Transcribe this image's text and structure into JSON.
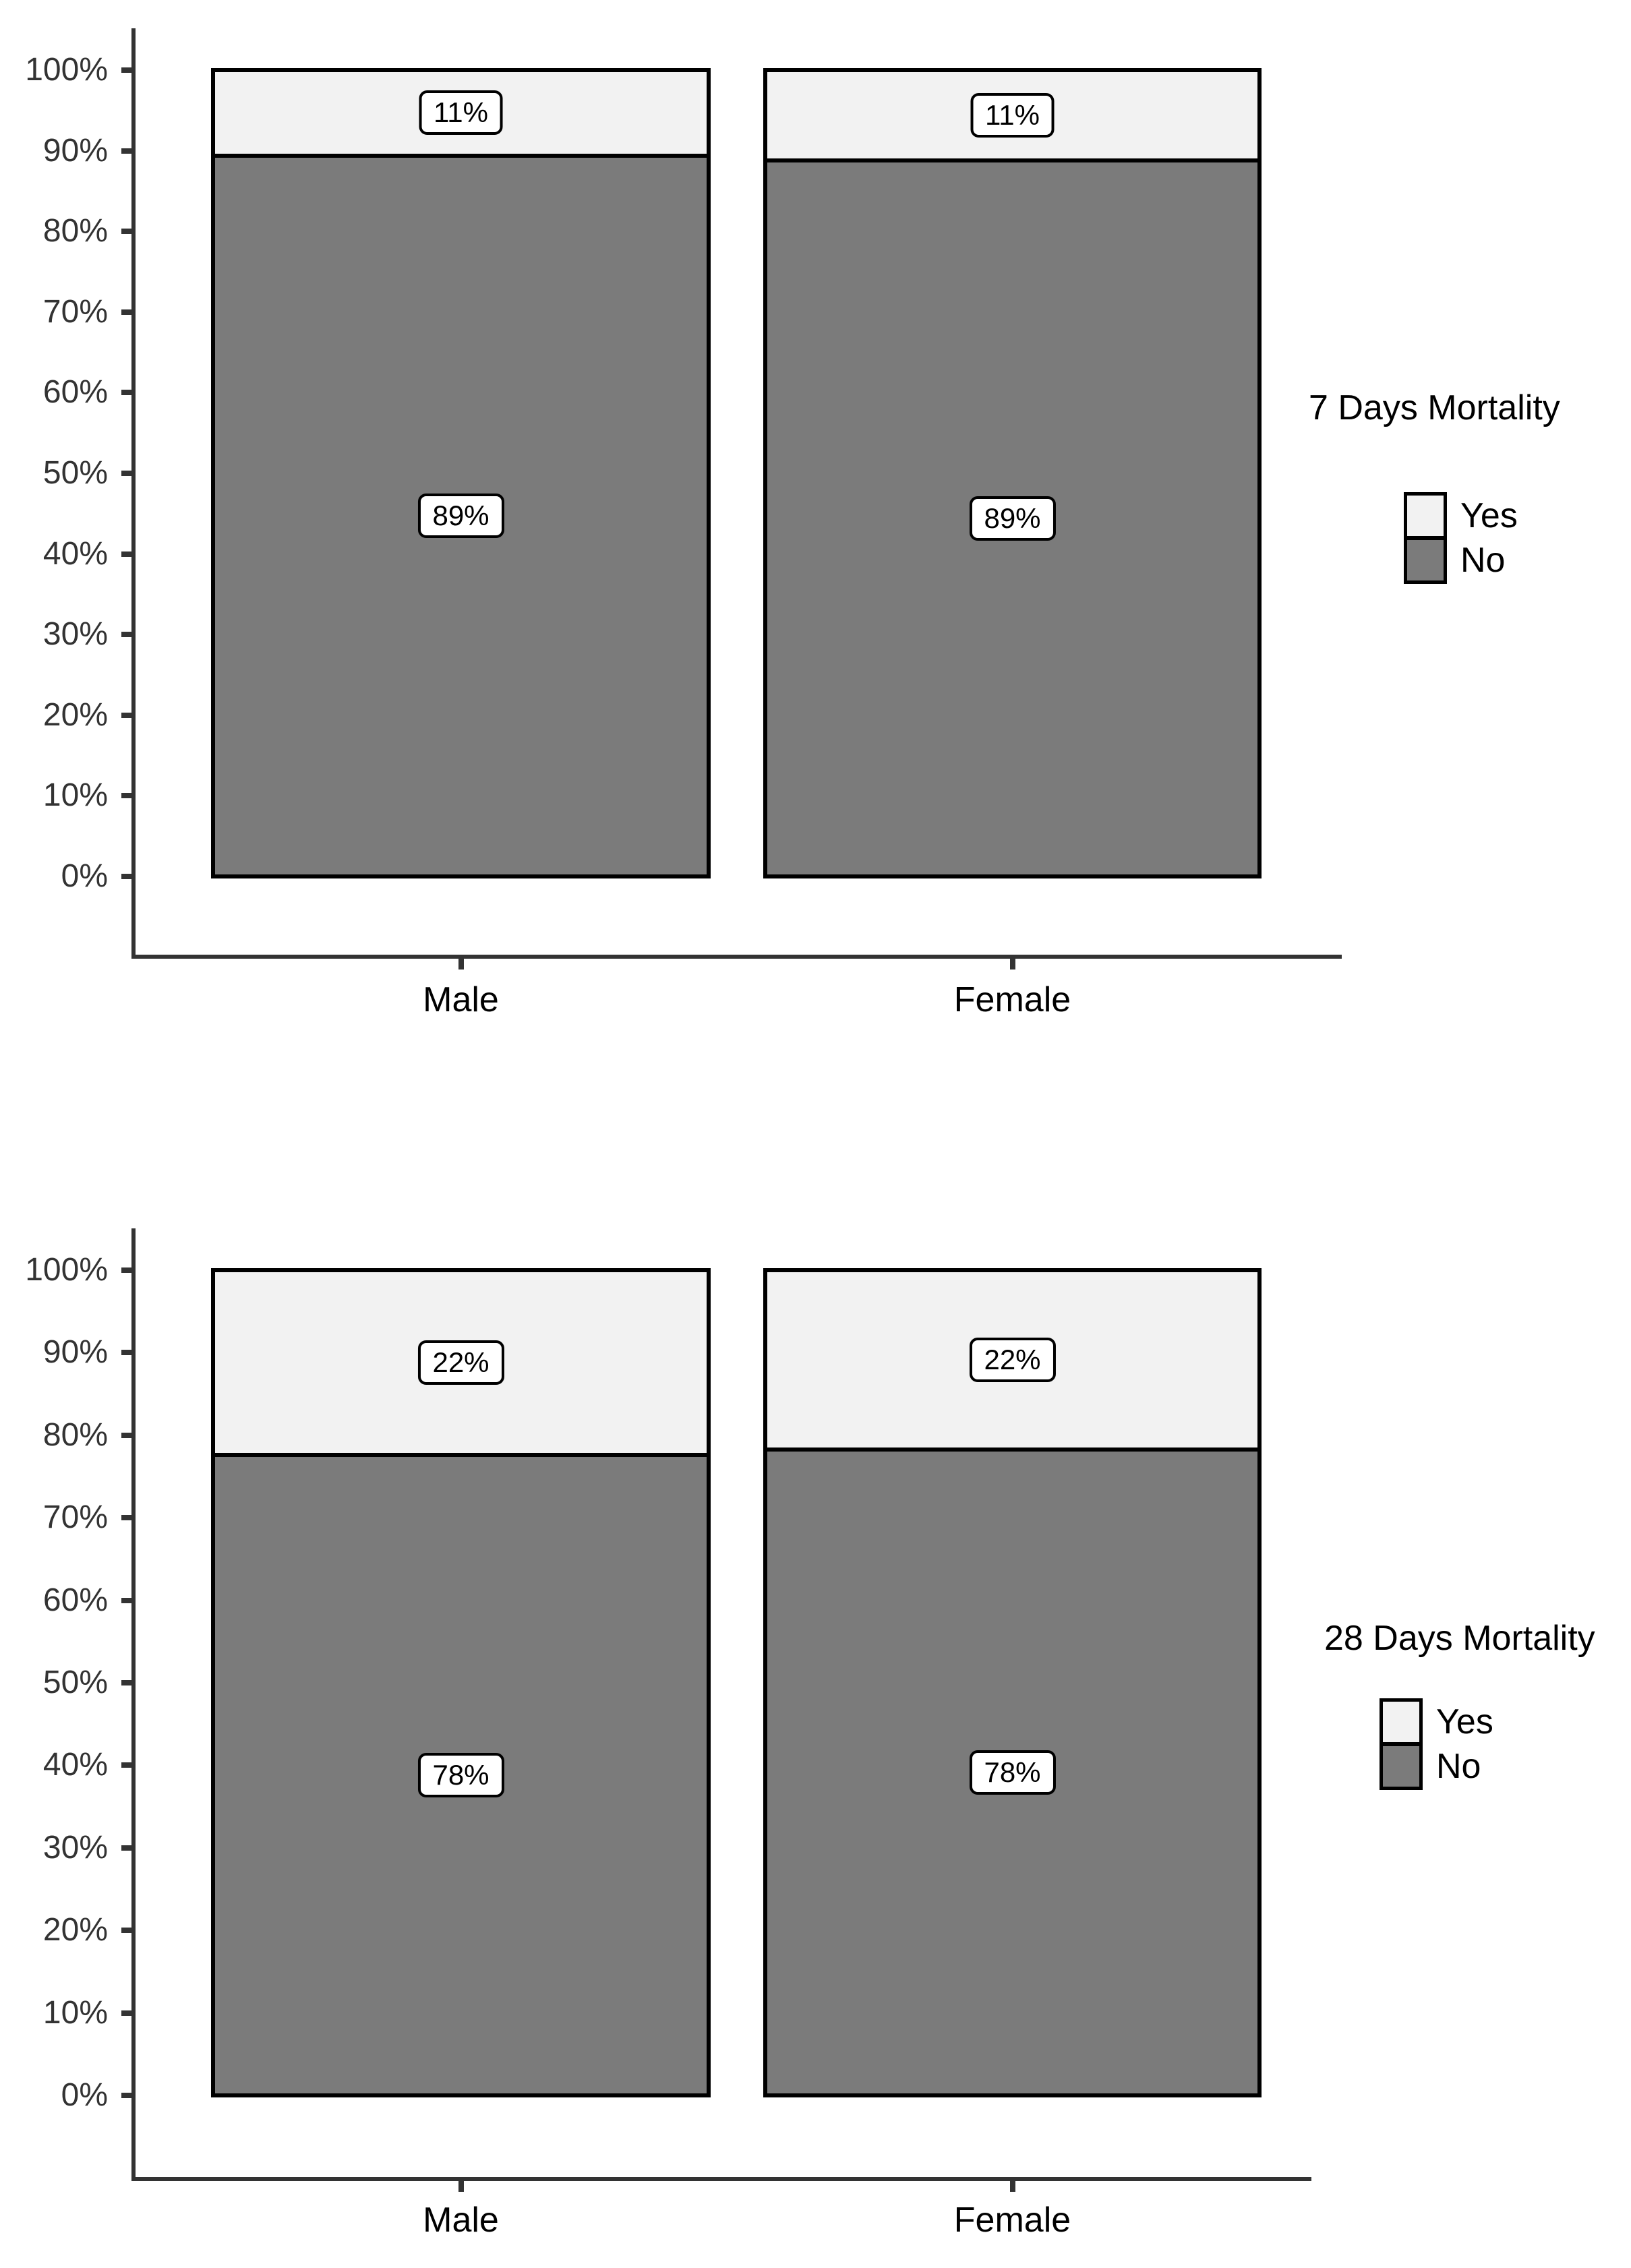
{
  "chart_data": [
    {
      "type": "bar",
      "stacked": true,
      "orientation": "vertical",
      "title": "",
      "legend_title": "7 Days Mortality",
      "legend_position": "right",
      "grid": false,
      "categories": [
        "Male",
        "Female"
      ],
      "series": [
        {
          "name": "Yes",
          "values": [
            11,
            11
          ],
          "labels": [
            "11%",
            "11%"
          ],
          "color": "#F2F2F2",
          "exact_pct": [
            10.6,
            11.2
          ]
        },
        {
          "name": "No",
          "values": [
            89,
            89
          ],
          "labels": [
            "89%",
            "89%"
          ],
          "color": "#7B7B7B",
          "exact_pct": [
            89.4,
            88.8
          ]
        }
      ],
      "ylim": [
        0,
        100
      ],
      "y_tick_labels": [
        "100%",
        "90%",
        "80%",
        "70%",
        "60%",
        "50%",
        "40%",
        "30%",
        "20%",
        "10%",
        "0%"
      ],
      "xlabel": "",
      "ylabel": ""
    },
    {
      "type": "bar",
      "stacked": true,
      "orientation": "vertical",
      "title": "",
      "legend_title": "28 Days Mortality",
      "legend_position": "right",
      "grid": false,
      "categories": [
        "Male",
        "Female"
      ],
      "series": [
        {
          "name": "Yes",
          "values": [
            22,
            22
          ],
          "labels": [
            "22%",
            "22%"
          ],
          "color": "#F2F2F2",
          "exact_pct": [
            22.4,
            21.7
          ]
        },
        {
          "name": "No",
          "values": [
            78,
            78
          ],
          "labels": [
            "78%",
            "78%"
          ],
          "color": "#7B7B7B",
          "exact_pct": [
            77.6,
            78.3
          ]
        }
      ],
      "ylim": [
        0,
        100
      ],
      "y_tick_labels": [
        "100%",
        "90%",
        "80%",
        "70%",
        "60%",
        "50%",
        "40%",
        "30%",
        "20%",
        "10%",
        "0%"
      ],
      "xlabel": "",
      "ylabel": ""
    }
  ],
  "colors": {
    "yes_fill": "#F2F2F2",
    "no_fill": "#7B7B7B",
    "bar_outline": "#000000",
    "axis": "#333333",
    "label_box_bg": "#FFFFFF",
    "text": "#000000"
  }
}
